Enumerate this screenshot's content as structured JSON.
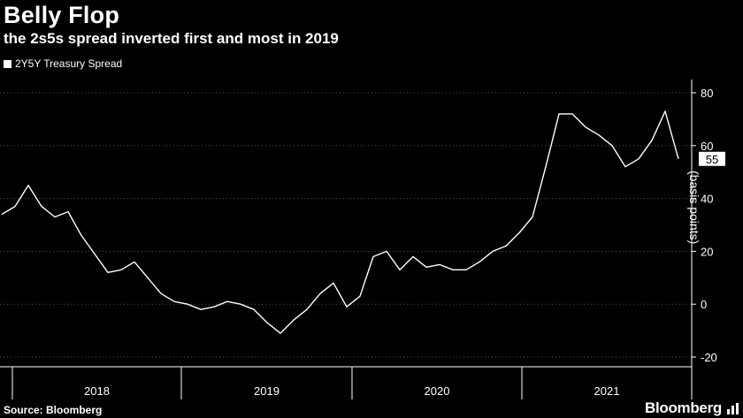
{
  "title": "Belly Flop",
  "subtitle": "the 2s5s spread inverted first and most in 2019",
  "legend_label": "2Y5Y Treasury Spread",
  "source": "Source: Bloomberg",
  "brand": "Bloomberg",
  "colors": {
    "background": "#000000",
    "line": "#ffffff",
    "grid": "#555555"
  },
  "chart_data": {
    "type": "line",
    "ylabel": "(basis points)",
    "ylim": [
      -20,
      80
    ],
    "yticks": [
      -20,
      0,
      20,
      40,
      60,
      80
    ],
    "grid": "horizontal dotted",
    "x_categories": [
      "2018",
      "2019",
      "2020",
      "2021"
    ],
    "last_value_label": "55",
    "series": [
      {
        "name": "2Y5Y Treasury Spread",
        "x": [
          "2017-09",
          "2017-10",
          "2017-11",
          "2017-12",
          "2018-01",
          "2018-02",
          "2018-03",
          "2018-04",
          "2018-05",
          "2018-06",
          "2018-07",
          "2018-08",
          "2018-09",
          "2018-10",
          "2018-11",
          "2018-12",
          "2019-01",
          "2019-02",
          "2019-03",
          "2019-04",
          "2019-05",
          "2019-06",
          "2019-07",
          "2019-08",
          "2019-09",
          "2019-10",
          "2019-11",
          "2019-12",
          "2020-01",
          "2020-02",
          "2020-03",
          "2020-04",
          "2020-05",
          "2020-06",
          "2020-07",
          "2020-08",
          "2020-09",
          "2020-10",
          "2020-11",
          "2020-12",
          "2021-01",
          "2021-02",
          "2021-03",
          "2021-04",
          "2021-05",
          "2021-06",
          "2021-07",
          "2021-08",
          "2021-09",
          "2021-10",
          "2021-11",
          "2021-12"
        ],
        "values": [
          34,
          37,
          45,
          37,
          33,
          35,
          26,
          19,
          12,
          13,
          16,
          10,
          4,
          1,
          0,
          -2,
          -1,
          1,
          0,
          -2,
          -7,
          -11,
          -6,
          -2,
          4,
          8,
          -1,
          3,
          18,
          20,
          13,
          18,
          14,
          15,
          13,
          13,
          16,
          20,
          22,
          27,
          33,
          52,
          72,
          72,
          67,
          64,
          60,
          52,
          55,
          62,
          73,
          55
        ]
      }
    ]
  }
}
